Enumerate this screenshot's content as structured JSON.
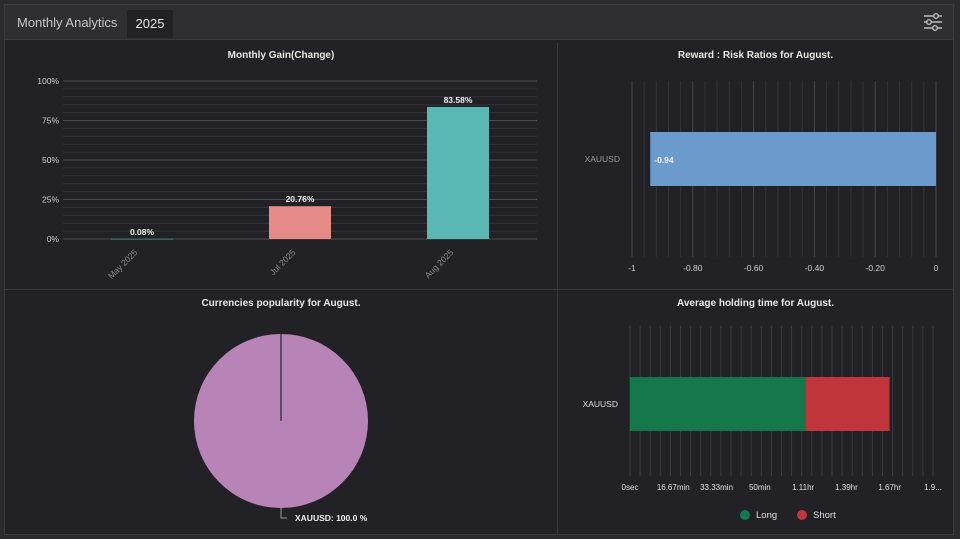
{
  "header": {
    "title": "Monthly Analytics",
    "year_tab": "2025",
    "settings_icon": "sliders-icon"
  },
  "gain_chart": {
    "title": "Monthly Gain(Change)",
    "chart_data": {
      "type": "bar",
      "categories": [
        "May 2025",
        "Jul 2025",
        "Aug 2025"
      ],
      "values": [
        0.08,
        20.76,
        83.58
      ],
      "value_labels": [
        "0.08%",
        "20.76%",
        "83.58%"
      ],
      "colors": [
        "#5ab8b4",
        "#e58a86",
        "#5ab8b4"
      ],
      "ylim": [
        0,
        100
      ],
      "y_ticks": [
        0,
        25,
        50,
        75,
        100
      ],
      "y_tick_labels": [
        "0%",
        "25%",
        "50%",
        "75%",
        "100%"
      ],
      "grid": true
    }
  },
  "ratio_chart": {
    "title": "Reward : Risk Ratios for August.",
    "chart_data": {
      "type": "bar",
      "orientation": "horizontal",
      "categories": [
        "XAUUSD"
      ],
      "values": [
        -0.94
      ],
      "value_labels": [
        "-0.94"
      ],
      "color": "#6b9bcc",
      "xlim": [
        -1,
        0
      ],
      "x_ticks": [
        -1,
        -0.8,
        -0.6,
        -0.4,
        -0.2,
        0
      ],
      "x_tick_labels": [
        "-1",
        "-0.80",
        "-0.60",
        "-0.40",
        "-0.20",
        "0"
      ],
      "grid": true
    }
  },
  "currency_chart": {
    "title": "Currencies popularity for August.",
    "chart_data": {
      "type": "pie",
      "slices": [
        {
          "label": "XAUUSD",
          "value": 100.0,
          "color": "#b884b8"
        }
      ],
      "label_text": "XAUUSD: 100.0 %"
    }
  },
  "holding_chart": {
    "title": "Average holding time for August.",
    "chart_data": {
      "type": "bar",
      "orientation": "horizontal",
      "stacked": true,
      "categories": [
        "XAUUSD"
      ],
      "series": [
        {
          "name": "Long",
          "values": [
            1.13
          ],
          "unit": "hr",
          "color": "#14784a"
        },
        {
          "name": "Short",
          "values": [
            0.54
          ],
          "unit": "hr",
          "color": "#c0343c"
        }
      ],
      "x_tick_labels": [
        "0sec",
        "16.67min",
        "33.33min",
        "50min",
        "1.11hr",
        "1.39hr",
        "1.67hr",
        "1.9..."
      ],
      "grid": true,
      "legend_position": "bottom"
    }
  }
}
